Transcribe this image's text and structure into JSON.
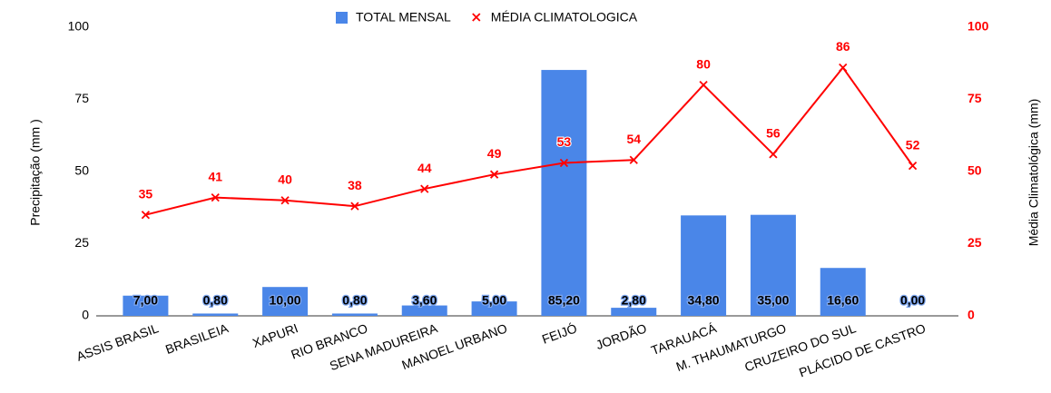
{
  "chart_data": {
    "type": "bar",
    "categories": [
      "ASSIS BRASIL",
      "BRASILEIA",
      "XAPURI",
      "RIO BRANCO",
      "SENA MADUREIRA",
      "MANOEL URBANO",
      "FEIJÓ",
      "JORDÃO",
      "TARAUACÁ",
      "M. THAUMATURGO",
      "CRUZEIRO DO SUL",
      "PLÁCIDO DE CASTRO"
    ],
    "series": [
      {
        "name": "TOTAL MENSAL",
        "type": "bar",
        "color": "#4a86e8",
        "values": [
          7.0,
          0.8,
          10.0,
          0.8,
          3.6,
          5.0,
          85.2,
          2.8,
          34.8,
          35.0,
          16.6,
          0.0
        ],
        "value_labels": [
          "7,00",
          "0,80",
          "10,00",
          "0,80",
          "3,60",
          "5,00",
          "85,20",
          "2,80",
          "34,80",
          "35,00",
          "16,60",
          "0,00"
        ]
      },
      {
        "name": "MÉDIA CLIMATOLOGICA",
        "type": "line",
        "axis": "y2",
        "color": "#ff0000",
        "values": [
          35,
          41,
          40,
          38,
          44,
          49,
          53,
          54,
          80,
          56,
          86,
          52
        ]
      }
    ],
    "ylabel": "Precipitação (mm )",
    "y2label": "Média Climatológica (mm)",
    "ylim": [
      0,
      100
    ],
    "yticks": [
      0,
      25,
      50,
      75,
      100
    ],
    "y2lim": [
      0,
      100
    ],
    "y2ticks": [
      0,
      25,
      50,
      75,
      100
    ],
    "legend": "top"
  }
}
